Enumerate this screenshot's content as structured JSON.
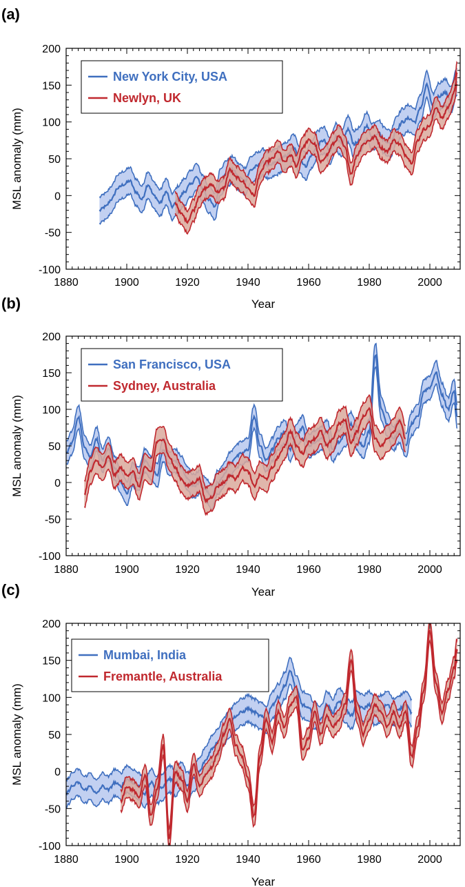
{
  "figure": {
    "blue_line": "#3f6fbf",
    "blue_fill": "#b7c8ee",
    "red_line": "#c0282e",
    "red_fill": "#dba99c"
  },
  "chart_data": [
    {
      "type": "line",
      "panel_label": "(a)",
      "xlabel": "Year",
      "ylabel": "MSL anomaly (mm)",
      "xlim": [
        1880,
        2010
      ],
      "ylim": [
        -100,
        200
      ],
      "xticks": [
        "1880",
        "1900",
        "1920",
        "1940",
        "1960",
        "1980",
        "2000"
      ],
      "yticks": [
        "200",
        "150",
        "100",
        "50",
        "0",
        "-50",
        "-100"
      ],
      "legend_position": "top-left",
      "series": [
        {
          "name": "New York City, USA",
          "color": "#3f6fbf",
          "fill": "#b7c8ee",
          "x": [
            1891,
            1893,
            1895,
            1897,
            1899,
            1901,
            1903,
            1905,
            1907,
            1909,
            1911,
            1913,
            1915,
            1917,
            1919,
            1921,
            1923,
            1925,
            1927,
            1929,
            1931,
            1933,
            1935,
            1937,
            1939,
            1941,
            1943,
            1945,
            1947,
            1949,
            1951,
            1953,
            1955,
            1957,
            1959,
            1961,
            1963,
            1965,
            1967,
            1969,
            1971,
            1973,
            1975,
            1977,
            1979,
            1981,
            1983,
            1985,
            1987,
            1989,
            1991,
            1993,
            1995,
            1997,
            1999,
            2001,
            2003,
            2005,
            2007,
            2009
          ],
          "values": [
            -20,
            -15,
            -5,
            10,
            15,
            20,
            5,
            -5,
            15,
            0,
            -10,
            5,
            -15,
            -5,
            5,
            15,
            25,
            10,
            -5,
            -15,
            20,
            30,
            35,
            25,
            20,
            35,
            40,
            45,
            40,
            45,
            50,
            55,
            65,
            50,
            40,
            55,
            70,
            75,
            60,
            80,
            70,
            90,
            70,
            75,
            95,
            80,
            85,
            75,
            70,
            90,
            100,
            105,
            100,
            120,
            150,
            120,
            135,
            140,
            130,
            155
          ],
          "band": 18
        },
        {
          "name": "Newlyn, UK",
          "color": "#c0282e",
          "fill": "#dba99c",
          "x": [
            1916,
            1918,
            1920,
            1922,
            1924,
            1926,
            1928,
            1930,
            1932,
            1934,
            1936,
            1938,
            1940,
            1942,
            1944,
            1946,
            1948,
            1950,
            1952,
            1954,
            1956,
            1958,
            1960,
            1962,
            1964,
            1966,
            1968,
            1970,
            1972,
            1974,
            1976,
            1978,
            1980,
            1982,
            1984,
            1986,
            1988,
            1990,
            1992,
            1994,
            1996,
            1998,
            2000,
            2002,
            2004,
            2006,
            2008,
            2009
          ],
          "values": [
            -10,
            -25,
            -35,
            -20,
            0,
            10,
            15,
            5,
            10,
            35,
            25,
            20,
            10,
            0,
            30,
            45,
            50,
            60,
            45,
            55,
            40,
            65,
            75,
            70,
            45,
            55,
            70,
            80,
            65,
            30,
            55,
            70,
            75,
            80,
            65,
            60,
            75,
            70,
            55,
            45,
            75,
            90,
            95,
            120,
            105,
            120,
            140,
            165
          ],
          "band": 15
        }
      ]
    },
    {
      "type": "line",
      "panel_label": "(b)",
      "xlabel": "Year",
      "ylabel": "MSL anomaly (mm)",
      "xlim": [
        1880,
        2010
      ],
      "ylim": [
        -100,
        200
      ],
      "xticks": [
        "1880",
        "1900",
        "1920",
        "1940",
        "1960",
        "1980",
        "2000"
      ],
      "yticks": [
        "200",
        "150",
        "100",
        "50",
        "0",
        "-50",
        "-100"
      ],
      "legend_position": "top-left",
      "series": [
        {
          "name": "San Francisco, USA",
          "color": "#3f6fbf",
          "fill": "#b7c8ee",
          "x": [
            1880,
            1882,
            1884,
            1886,
            1888,
            1890,
            1892,
            1894,
            1896,
            1898,
            1900,
            1902,
            1904,
            1906,
            1908,
            1910,
            1912,
            1914,
            1916,
            1918,
            1920,
            1922,
            1924,
            1926,
            1928,
            1930,
            1932,
            1934,
            1936,
            1938,
            1940,
            1942,
            1944,
            1946,
            1948,
            1950,
            1952,
            1954,
            1956,
            1958,
            1960,
            1962,
            1964,
            1966,
            1968,
            1970,
            1972,
            1974,
            1976,
            1978,
            1980,
            1982,
            1984,
            1986,
            1988,
            1990,
            1992,
            1994,
            1996,
            1998,
            2000,
            2002,
            2004,
            2006,
            2008,
            2009
          ],
          "values": [
            40,
            55,
            90,
            50,
            35,
            60,
            30,
            45,
            20,
            0,
            -15,
            10,
            5,
            30,
            20,
            10,
            45,
            25,
            30,
            20,
            5,
            -5,
            0,
            -10,
            -20,
            0,
            10,
            25,
            35,
            40,
            45,
            90,
            50,
            30,
            45,
            60,
            70,
            45,
            65,
            75,
            50,
            55,
            60,
            70,
            45,
            55,
            65,
            80,
            60,
            50,
            70,
            175,
            100,
            80,
            60,
            70,
            50,
            80,
            90,
            125,
            130,
            150,
            120,
            100,
            125,
            90
          ],
          "band": 16
        },
        {
          "name": "Sydney, Australia",
          "color": "#c0282e",
          "fill": "#dba99c",
          "x": [
            1886,
            1888,
            1890,
            1892,
            1894,
            1896,
            1898,
            1900,
            1902,
            1904,
            1906,
            1908,
            1910,
            1912,
            1914,
            1916,
            1918,
            1920,
            1922,
            1924,
            1926,
            1928,
            1930,
            1932,
            1934,
            1936,
            1938,
            1940,
            1942,
            1944,
            1946,
            1948,
            1950,
            1952,
            1954,
            1956,
            1958,
            1960,
            1962,
            1964,
            1966,
            1968,
            1970,
            1972,
            1974,
            1976,
            1978,
            1980,
            1982,
            1984,
            1986,
            1988,
            1990,
            1992
          ],
          "values": [
            -15,
            15,
            30,
            20,
            35,
            10,
            20,
            10,
            15,
            -5,
            20,
            15,
            55,
            60,
            35,
            20,
            5,
            -5,
            0,
            5,
            -25,
            -20,
            -5,
            0,
            10,
            5,
            20,
            15,
            -5,
            10,
            5,
            20,
            35,
            50,
            70,
            50,
            40,
            55,
            60,
            70,
            50,
            60,
            80,
            85,
            55,
            70,
            90,
            100,
            60,
            50,
            60,
            70,
            85,
            60
          ],
          "band": 18
        }
      ]
    },
    {
      "type": "line",
      "panel_label": "(c)",
      "xlabel": "Year",
      "ylabel": "MSL anomaly (mm)",
      "xlim": [
        1880,
        2010
      ],
      "ylim": [
        -100,
        200
      ],
      "xticks": [
        "1880",
        "1900",
        "1920",
        "1940",
        "1960",
        "1980",
        "2000"
      ],
      "yticks": [
        "200",
        "150",
        "100",
        "50",
        "0",
        "-50",
        "-100"
      ],
      "legend_position": "top-left",
      "series": [
        {
          "name": "Mumbai, India",
          "color": "#3f6fbf",
          "fill": "#b7c8ee",
          "x": [
            1878,
            1880,
            1882,
            1884,
            1886,
            1888,
            1890,
            1892,
            1894,
            1896,
            1898,
            1900,
            1902,
            1904,
            1906,
            1908,
            1910,
            1912,
            1914,
            1916,
            1918,
            1920,
            1922,
            1924,
            1926,
            1928,
            1930,
            1932,
            1934,
            1936,
            1938,
            1940,
            1942,
            1944,
            1946,
            1948,
            1950,
            1952,
            1954,
            1956,
            1958,
            1960,
            1962,
            1964,
            1966,
            1968,
            1970,
            1972,
            1974,
            1976,
            1978,
            1980,
            1982,
            1984,
            1986,
            1988,
            1990,
            1992,
            1994
          ],
          "values": [
            -40,
            -30,
            -20,
            -15,
            -25,
            -20,
            -30,
            -20,
            -25,
            -15,
            -20,
            -10,
            -15,
            -20,
            -30,
            -15,
            -25,
            -20,
            -10,
            -15,
            -5,
            -20,
            -10,
            0,
            15,
            30,
            40,
            55,
            65,
            75,
            80,
            85,
            80,
            75,
            70,
            90,
            100,
            115,
            135,
            110,
            90,
            85,
            75,
            70,
            90,
            80,
            95,
            85,
            75,
            90,
            85,
            90,
            80,
            85,
            90,
            80,
            85,
            90,
            80
          ],
          "band": 18
        },
        {
          "name": "Fremantle, Australia",
          "color": "#c0282e",
          "fill": "#dba99c",
          "x": [
            1898,
            1900,
            1902,
            1904,
            1906,
            1908,
            1910,
            1912,
            1914,
            1916,
            1918,
            1920,
            1922,
            1924,
            1926,
            1928,
            1930,
            1932,
            1934,
            1936,
            1938,
            1940,
            1942,
            1944,
            1946,
            1948,
            1950,
            1952,
            1954,
            1956,
            1958,
            1960,
            1962,
            1964,
            1966,
            1968,
            1970,
            1972,
            1974,
            1976,
            1978,
            1980,
            1982,
            1984,
            1986,
            1988,
            1990,
            1992,
            1994,
            1996,
            1998,
            2000,
            2002,
            2004,
            2006,
            2008,
            2009
          ],
          "values": [
            -40,
            -20,
            -25,
            -35,
            -5,
            -60,
            -25,
            35,
            -90,
            0,
            -10,
            -40,
            10,
            -20,
            -5,
            5,
            25,
            50,
            70,
            35,
            20,
            -10,
            -60,
            20,
            70,
            40,
            80,
            60,
            90,
            100,
            30,
            45,
            80,
            50,
            75,
            60,
            70,
            90,
            150,
            80,
            50,
            70,
            90,
            80,
            60,
            80,
            60,
            80,
            20,
            60,
            110,
            190,
            120,
            80,
            110,
            140,
            165
          ],
          "band": 14
        }
      ]
    }
  ]
}
